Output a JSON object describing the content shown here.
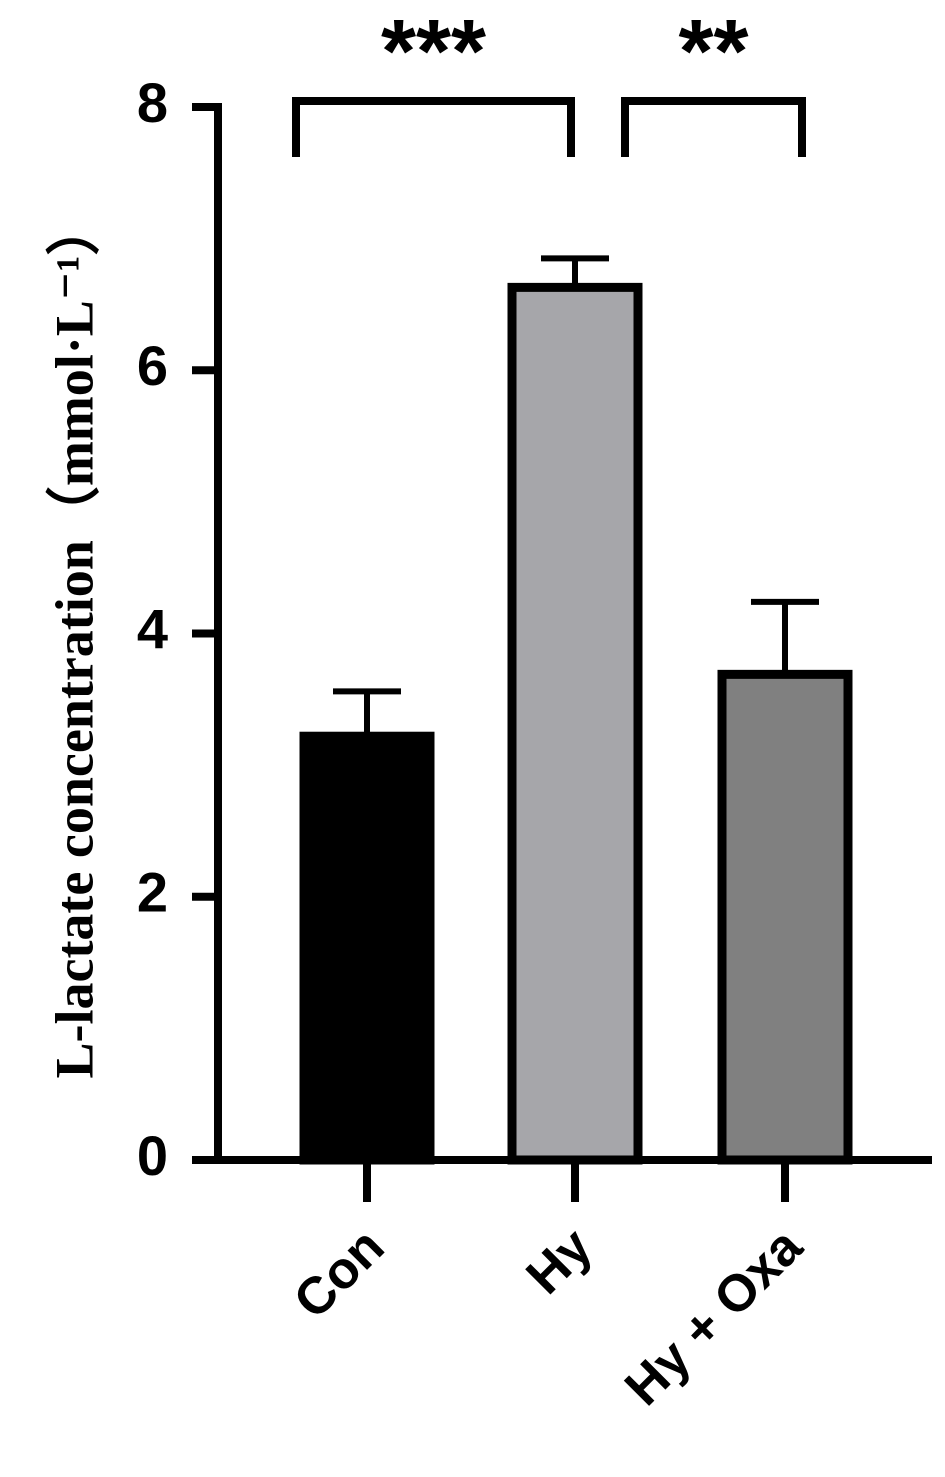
{
  "chart_data": {
    "type": "bar",
    "y_label": "L-lactate concentration（mmol·L⁻¹）",
    "categories": [
      "Con",
      "Hy",
      "Hy + Oxa"
    ],
    "values": [
      3.25,
      6.66,
      3.72
    ],
    "errors": [
      0.31,
      0.19,
      0.52
    ],
    "colors": [
      "#000000",
      "#a6a6aa",
      "#808080"
    ],
    "ylim": [
      0,
      8
    ],
    "yticks": [
      0,
      2,
      4,
      6,
      8
    ],
    "annotations": [
      {
        "text": "***",
        "from": 0,
        "to": 1
      },
      {
        "text": "**",
        "from": 1,
        "to": 2
      }
    ]
  }
}
